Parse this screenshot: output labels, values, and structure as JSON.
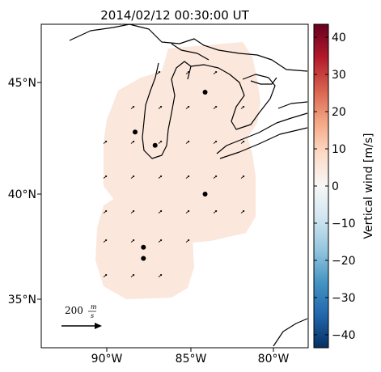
{
  "title": "2014/02/12 00:30:00 UT",
  "lat_ticks": [
    {
      "value": 45,
      "label": "45°N"
    },
    {
      "value": 40,
      "label": "40°N"
    },
    {
      "value": 35,
      "label": "35°N"
    }
  ],
  "lon_ticks": [
    {
      "value": -90,
      "label": "90°W"
    },
    {
      "value": -85,
      "label": "85°W"
    },
    {
      "value": -80,
      "label": "80°W"
    }
  ],
  "colorbar": {
    "label": "Vertical wind [m/s]",
    "min": -43.5,
    "max": 43.5,
    "ticks": [
      40,
      30,
      20,
      10,
      0,
      -10,
      -20,
      -30,
      -40
    ],
    "tick_labels": [
      "40",
      "30",
      "20",
      "10",
      "0",
      "−10",
      "−20",
      "−30",
      "−40"
    ],
    "colormap": [
      "#67001f",
      "#b2182b",
      "#d6604d",
      "#f4a582",
      "#fddbc7",
      "#f7f7f7",
      "#d1e5f0",
      "#92c5de",
      "#4393c3",
      "#2166ac",
      "#053061"
    ]
  },
  "scale_arrow": {
    "value": 200,
    "unit_num": "m",
    "unit_den": "s"
  },
  "stations": [
    {
      "lat": 44.6,
      "lon": -84.1
    },
    {
      "lat": 42.8,
      "lon": -88.3
    },
    {
      "lat": 42.2,
      "lon": -87.1
    },
    {
      "lat": 40.0,
      "lon": -84.1
    },
    {
      "lat": 37.6,
      "lon": -87.8
    },
    {
      "lat": 37.1,
      "lon": -87.8
    }
  ],
  "coverage_color": "#fbe7dc"
}
